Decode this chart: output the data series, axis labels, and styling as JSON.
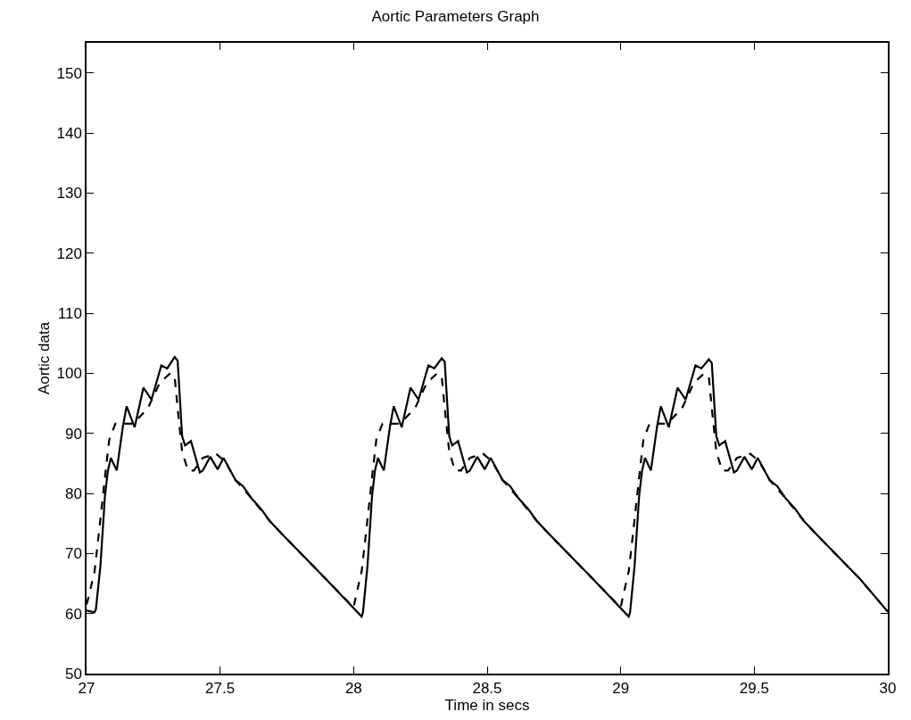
{
  "chart_data": {
    "type": "line",
    "title": "Aortic Parameters Graph",
    "xlabel": "Time in secs",
    "ylabel": "Aortic data",
    "xlim": [
      27,
      30
    ],
    "xticks": [
      27,
      27.5,
      28,
      28.5,
      29,
      29.5,
      30
    ],
    "ylim": [
      50,
      155
    ],
    "yticks": [
      50,
      60,
      70,
      80,
      90,
      100,
      110,
      120,
      130,
      140,
      150
    ],
    "series": [
      {
        "color": "#000000",
        "line_style": "solid",
        "x": [
          27.0,
          27.03,
          27.035,
          27.052,
          27.069,
          27.08,
          27.091,
          27.113,
          27.136,
          27.15,
          27.18,
          27.213,
          27.243,
          27.28,
          27.302,
          27.33,
          27.341,
          27.358,
          27.369,
          27.391,
          27.424,
          27.435,
          27.463,
          27.491,
          27.513,
          27.558,
          27.586,
          27.619,
          27.652,
          27.686,
          27.73,
          27.897,
          28.03,
          28.035,
          28.052,
          28.069,
          28.08,
          28.091,
          28.113,
          28.136,
          28.15,
          28.18,
          28.213,
          28.243,
          28.28,
          28.302,
          28.33,
          28.341,
          28.358,
          28.369,
          28.391,
          28.424,
          28.435,
          28.463,
          28.491,
          28.513,
          28.558,
          28.586,
          28.619,
          28.652,
          28.686,
          28.73,
          28.897,
          29.03,
          29.035,
          29.052,
          29.069,
          29.08,
          29.091,
          29.113,
          29.136,
          29.15,
          29.18,
          29.213,
          29.243,
          29.28,
          29.302,
          29.33,
          29.341,
          29.358,
          29.369,
          29.391,
          29.424,
          29.435,
          29.463,
          29.491,
          29.513,
          29.558,
          29.586,
          29.619,
          29.652,
          29.686,
          29.73,
          29.897,
          30.0
        ],
        "values": [
          60.5,
          60.2,
          60.7,
          68,
          79.6,
          83.8,
          85.9,
          83.8,
          91.1,
          94.5,
          91,
          97.6,
          95.6,
          101.3,
          100.8,
          102.7,
          102.1,
          89.5,
          88,
          88.7,
          83.5,
          83.8,
          86.1,
          84,
          85.9,
          82.2,
          81.2,
          79.1,
          77.5,
          75.4,
          73.3,
          65.7,
          59.5,
          60.2,
          68,
          79.6,
          83.8,
          85.9,
          83.8,
          91.1,
          94.5,
          91,
          97.6,
          95.6,
          101.3,
          100.8,
          102.5,
          101.9,
          89.5,
          88,
          88.7,
          83.5,
          83.8,
          86.1,
          84,
          85.9,
          82.2,
          81.2,
          79.1,
          77.5,
          75.4,
          73.3,
          65.7,
          59.5,
          60.2,
          68,
          79.6,
          83.8,
          85.9,
          83.8,
          91.1,
          94.5,
          91,
          97.6,
          95.6,
          101.3,
          100.8,
          102.3,
          101.7,
          89.5,
          88,
          88.7,
          83.5,
          83.8,
          86.1,
          84,
          85.9,
          82.2,
          81.2,
          79.1,
          77.5,
          75.4,
          73.3,
          65.7,
          60.3
        ]
      },
      {
        "color": "#000000",
        "line_style": "dashed",
        "x": [
          27.0,
          27.008,
          27.03,
          27.046,
          27.069,
          27.085,
          27.108,
          27.174,
          27.23,
          27.274,
          27.313,
          27.33,
          27.341,
          27.358,
          27.38,
          27.402,
          27.435,
          27.485,
          27.519,
          27.558,
          27.619,
          27.686,
          27.73,
          27.897,
          28.0,
          28.008,
          28.03,
          28.046,
          28.069,
          28.085,
          28.108,
          28.174,
          28.23,
          28.274,
          28.313,
          28.33,
          28.341,
          28.358,
          28.38,
          28.402,
          28.435,
          28.485,
          28.519,
          28.558,
          28.619,
          28.686,
          28.73,
          28.897,
          29.0,
          29.008,
          29.03,
          29.046,
          29.069,
          29.085,
          29.108,
          29.174,
          29.23,
          29.274,
          29.313,
          29.33,
          29.341,
          29.358,
          29.38,
          29.402,
          29.435,
          29.485,
          29.519,
          29.558,
          29.619,
          29.686,
          29.73,
          29.897,
          30.0
        ],
        "values": [
          61.5,
          62.8,
          67,
          73.3,
          82.7,
          89,
          91.6,
          91.6,
          94.2,
          98.4,
          100,
          99.4,
          94.2,
          86.9,
          83.8,
          83.8,
          85.9,
          86.6,
          85.3,
          82.2,
          79.1,
          75.4,
          73.3,
          65.7,
          61,
          62.8,
          67,
          73.3,
          82.7,
          89,
          91.6,
          91.6,
          94.2,
          98.4,
          100,
          99.4,
          94.2,
          86.9,
          83.8,
          83.8,
          85.9,
          86.6,
          85.3,
          82.2,
          79.1,
          75.4,
          73.3,
          65.7,
          61,
          62.8,
          67,
          73.3,
          82.7,
          89,
          91.6,
          91.6,
          94.2,
          98.4,
          100,
          99.4,
          94.2,
          86.9,
          83.8,
          83.8,
          85.9,
          86.6,
          85.3,
          82.2,
          79.1,
          75.4,
          73.3,
          65.7,
          60.3
        ]
      }
    ]
  }
}
